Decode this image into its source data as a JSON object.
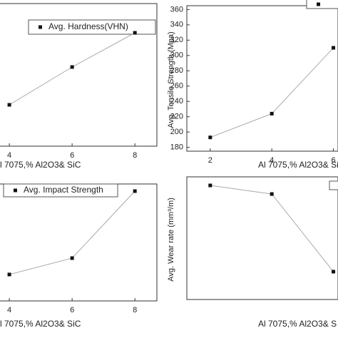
{
  "chart_data": [
    {
      "type": "line",
      "x": [
        4,
        6,
        8
      ],
      "xlim": [
        1,
        8.7
      ],
      "xticks": [
        4,
        6,
        8
      ],
      "ylim": [
        0,
        100
      ],
      "series": [
        {
          "name": "Avg. Hardness(VHN)",
          "color": "#111111",
          "values": [
            29,
            55.5,
            79.5
          ]
        }
      ],
      "x_label": "l 7075,% Al2O3& SiC"
    },
    {
      "type": "line",
      "x": [
        2,
        4,
        6
      ],
      "xlim": [
        1.24,
        6.15
      ],
      "xticks": [
        2,
        4,
        6
      ],
      "ylim": [
        175,
        365
      ],
      "yticks": [
        180,
        200,
        220,
        240,
        260,
        280,
        300,
        320,
        340,
        360
      ],
      "series": [
        {
          "color": "#111111",
          "values": [
            193,
            224,
            310
          ]
        }
      ],
      "x_label": "Al 7075,% Al2O3& Si",
      "y_label": "Avg. Tensile Strength (Mpa)"
    },
    {
      "type": "line",
      "x": [
        4,
        6,
        8
      ],
      "xlim": [
        1,
        8.7
      ],
      "xticks": [
        4,
        6,
        8
      ],
      "ylim": [
        0,
        100
      ],
      "series": [
        {
          "name": "Avg. Impact Strength",
          "color": "#111111",
          "values": [
            22.6,
            36.6,
            93.9
          ]
        }
      ],
      "x_label": "l 7075,% Al2O3& SiC"
    },
    {
      "type": "line",
      "x": [
        2,
        4,
        6
      ],
      "xlim": [
        1.24,
        6.15
      ],
      "ylim": [
        0,
        100
      ],
      "series": [
        {
          "color": "#111111",
          "values": [
            93,
            86,
            22.7
          ]
        }
      ],
      "x_label": "Al 7075,% Al2O3& S",
      "y_label": "Avg. Wear rate (mm³/m)"
    }
  ]
}
